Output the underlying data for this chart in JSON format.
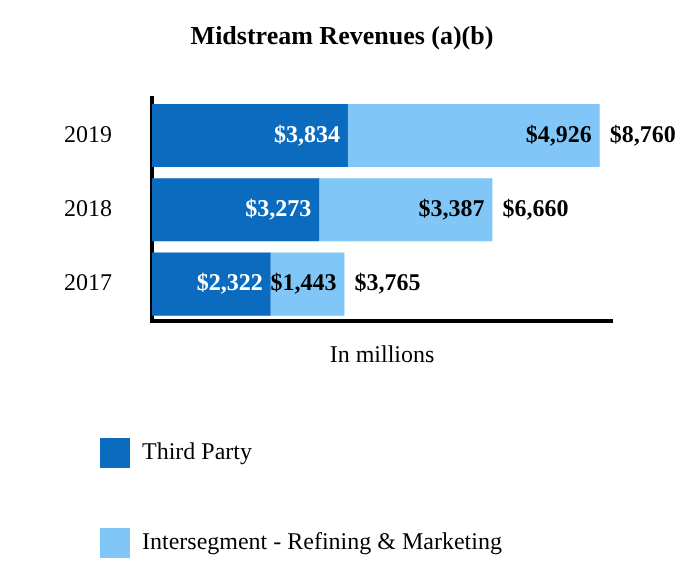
{
  "chart_data": {
    "type": "bar",
    "orientation": "horizontal",
    "stacked": true,
    "title": "Midstream Revenues (a)(b)",
    "xlabel": "In millions",
    "categories": [
      "2019",
      "2018",
      "2017"
    ],
    "series": [
      {
        "name": "Third Party",
        "color": "#0b6bbf",
        "values": [
          3834,
          3273,
          2322
        ],
        "value_labels": [
          "$3,834",
          "$3,273",
          "$2,322"
        ]
      },
      {
        "name": "Intersegment - Refining & Marketing",
        "color": "#80c6f7",
        "values": [
          4926,
          3387,
          1443
        ],
        "value_labels": [
          "$4,926",
          "$3,387",
          "$1,443"
        ]
      }
    ],
    "totals": [
      "$8,760",
      "$6,660",
      "$3,765"
    ],
    "xlim": [
      0,
      9000
    ],
    "tick_labels": "y",
    "legend": "bottom"
  }
}
